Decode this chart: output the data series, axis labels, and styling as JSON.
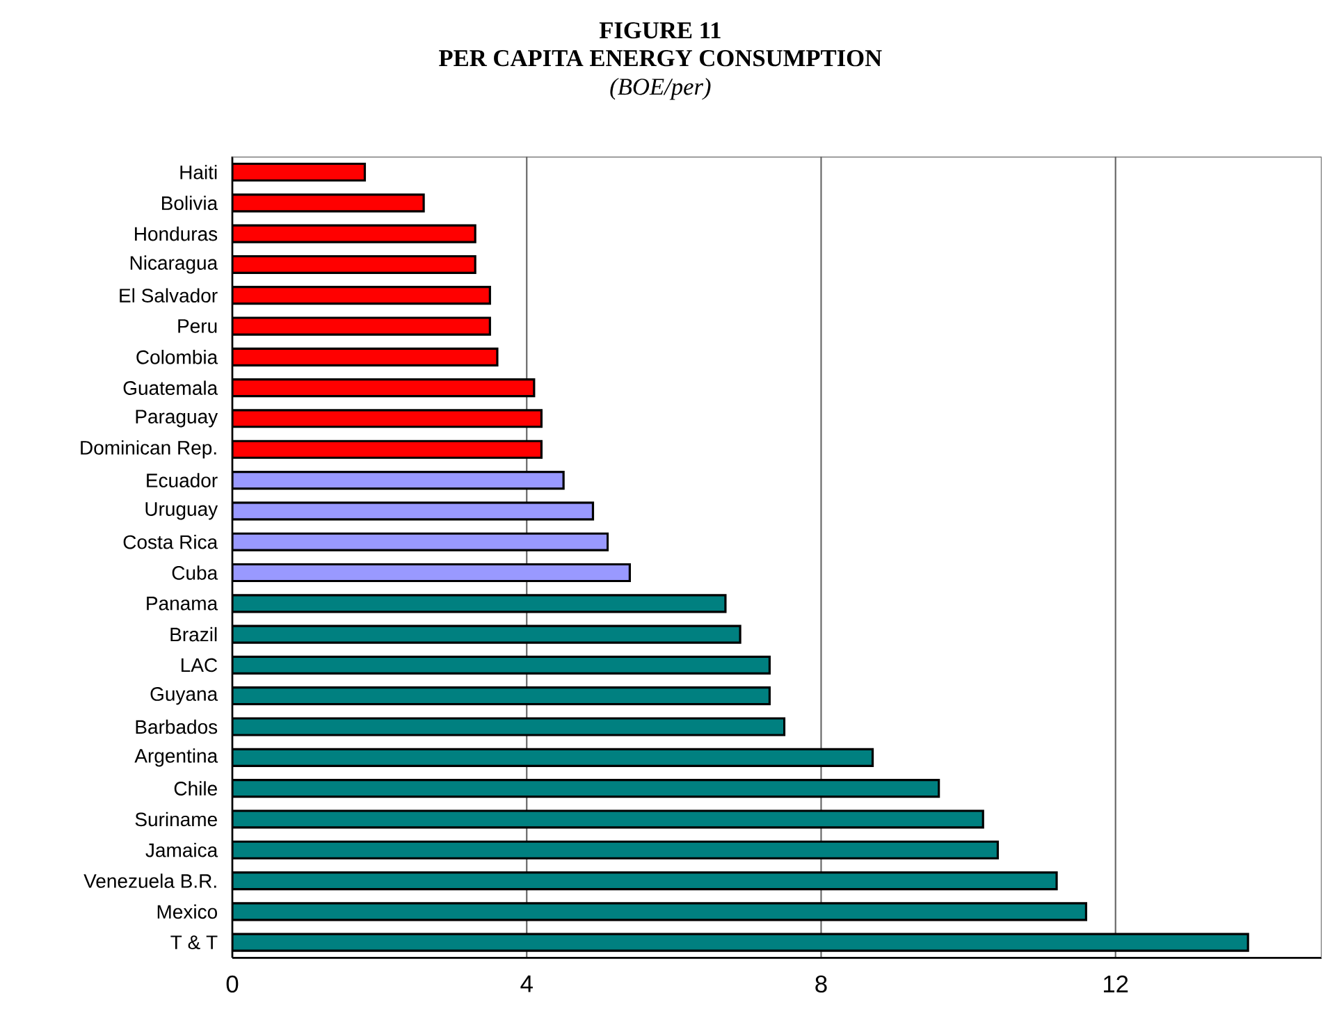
{
  "chart_data": {
    "type": "bar",
    "orientation": "horizontal",
    "title": "FIGURE 11",
    "subtitle": "PER CAPITA ENERGY CONSUMPTION",
    "annotations": [
      "(BOE/per)"
    ],
    "categories": [
      "Haiti",
      "Bolivia",
      "Honduras",
      "Nicaragua",
      "El Salvador",
      "Peru",
      "Colombia",
      "Guatemala",
      "Paraguay",
      "Dominican Rep.",
      "Ecuador",
      "Uruguay",
      "Costa Rica",
      "Cuba",
      "Panama",
      "Brazil",
      "LAC",
      "Guyana",
      "Barbados",
      "Argentina",
      "Chile",
      "Suriname",
      "Jamaica",
      "Venezuela B.R.",
      "Mexico",
      "T & T"
    ],
    "values": [
      1.8,
      2.6,
      3.3,
      3.3,
      3.5,
      3.5,
      3.6,
      4.1,
      4.2,
      4.2,
      4.5,
      4.9,
      5.1,
      5.4,
      6.7,
      6.9,
      7.3,
      7.3,
      7.5,
      8.7,
      9.6,
      10.2,
      10.4,
      11.2,
      11.6,
      13.8
    ],
    "colors": [
      "#ff0000",
      "#ff0000",
      "#ff0000",
      "#ff0000",
      "#ff0000",
      "#ff0000",
      "#ff0000",
      "#ff0000",
      "#ff0000",
      "#ff0000",
      "#9999ff",
      "#9999ff",
      "#9999ff",
      "#9999ff",
      "#008080",
      "#008080",
      "#008080",
      "#008080",
      "#008080",
      "#008080",
      "#008080",
      "#008080",
      "#008080",
      "#008080",
      "#008080",
      "#008080"
    ],
    "xlim": [
      0,
      14.8
    ],
    "xticks": [
      0,
      4,
      8,
      12
    ],
    "grid": "x"
  }
}
